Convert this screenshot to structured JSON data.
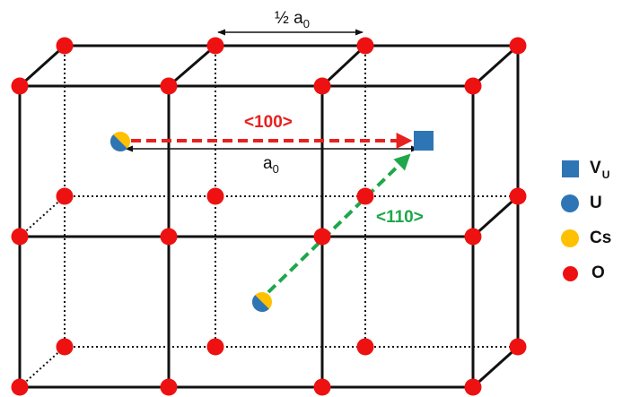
{
  "labels": {
    "half_a0_prefix": "½ a",
    "half_a0_sub": "0",
    "a0_prefix": "a",
    "a0_sub": "0",
    "dir_100": "<100>",
    "dir_110": "<110>"
  },
  "legend": {
    "vacancy": {
      "label": "V",
      "sub": "U"
    },
    "uranium": {
      "label": "U"
    },
    "cesium": {
      "label": "Cs"
    },
    "oxygen": {
      "label": "O"
    }
  },
  "colors": {
    "oxygen": "#ee1111",
    "uranium": "#2e75b6",
    "cesium": "#ffc000",
    "arrow_100": "#e8201e",
    "arrow_110": "#1fa74a",
    "lattice": "#111111"
  }
}
